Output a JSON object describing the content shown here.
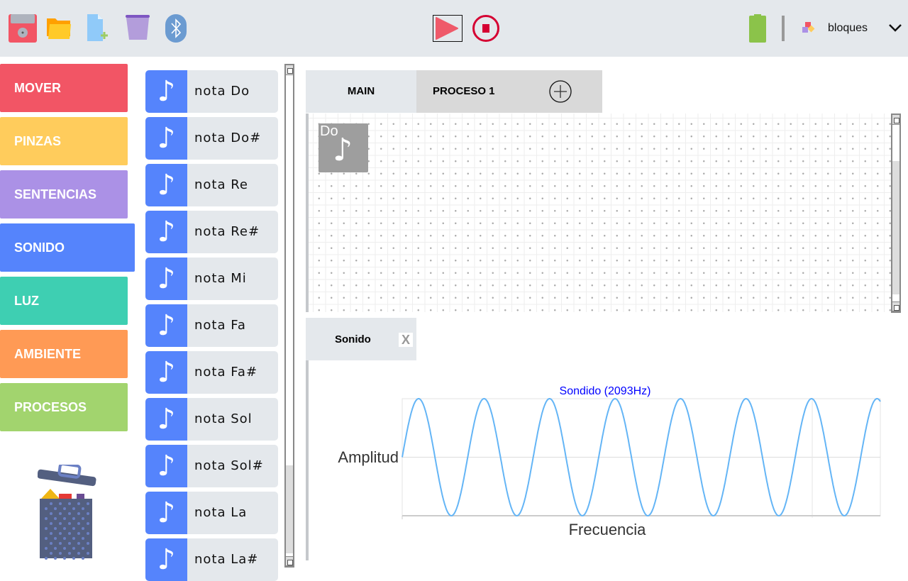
{
  "toolbar": {
    "icons": [
      "save-icon",
      "open-folder-icon",
      "new-file-icon",
      "trash-icon",
      "bluetooth-icon"
    ],
    "play": "play-icon",
    "stop": "stop-icon",
    "battery": "battery-icon",
    "mode_label": "bloques",
    "mode_icon": "blocks-icon"
  },
  "categories": [
    {
      "label": "MOVER",
      "color": "#f25565"
    },
    {
      "label": "PINZAS",
      "color": "#ffcc5c"
    },
    {
      "label": "SENTENCIAS",
      "color": "#ab91e6"
    },
    {
      "label": "SONIDO",
      "color": "#5584fc"
    },
    {
      "label": "LUZ",
      "color": "#3ecfb2"
    },
    {
      "label": "AMBIENTE",
      "color": "#ff9a55"
    },
    {
      "label": "PROCESOS",
      "color": "#a2d46e"
    }
  ],
  "blocks": [
    {
      "label": "nota Do"
    },
    {
      "label": "nota Do#"
    },
    {
      "label": "nota Re"
    },
    {
      "label": "nota Re#"
    },
    {
      "label": "nota Mi"
    },
    {
      "label": "nota Fa"
    },
    {
      "label": "nota Fa#"
    },
    {
      "label": "nota Sol"
    },
    {
      "label": "nota Sol#"
    },
    {
      "label": "nota La"
    },
    {
      "label": "nota La#"
    }
  ],
  "tabs": {
    "main": "MAIN",
    "proceso": "PROCESO 1"
  },
  "canvas": {
    "block_label": "Do"
  },
  "panel": {
    "tab": "Sonido",
    "close": "X"
  },
  "chart_data": {
    "type": "line",
    "title": "Sondido (2093Hz)",
    "xlabel": "Frecuencia",
    "ylabel": "Amplitud",
    "waveform": "sine",
    "frequency_hz": 2093,
    "cycles_shown": 7.3,
    "amplitude": 1,
    "ylim": [
      -1,
      1
    ],
    "grid": true,
    "series_color": "#64b5f6",
    "title_color": "#0000ff"
  }
}
